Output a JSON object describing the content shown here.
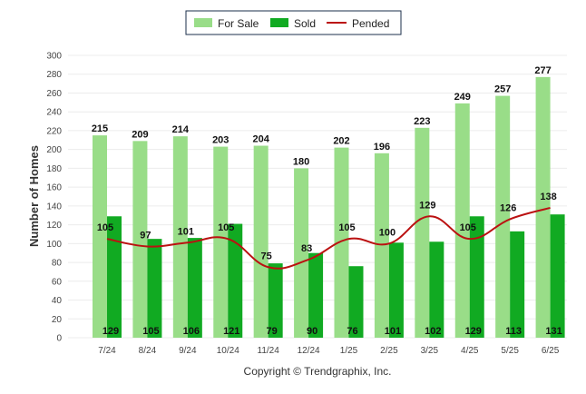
{
  "chart_data": {
    "type": "bar",
    "categories": [
      "7/24",
      "8/24",
      "9/24",
      "10/24",
      "11/24",
      "12/24",
      "1/25",
      "2/25",
      "3/25",
      "4/25",
      "5/25",
      "6/25"
    ],
    "series": [
      {
        "name": "For Sale",
        "type": "bar",
        "color": "#99dd88",
        "values": [
          215,
          209,
          214,
          203,
          204,
          180,
          202,
          196,
          223,
          249,
          257,
          277
        ]
      },
      {
        "name": "Sold",
        "type": "bar",
        "color": "#11aa22",
        "values": [
          129,
          105,
          106,
          121,
          79,
          90,
          76,
          101,
          102,
          129,
          113,
          131
        ]
      },
      {
        "name": "Pended",
        "type": "line",
        "color": "#bb1111",
        "values": [
          105,
          97,
          101,
          105,
          75,
          83,
          105,
          100,
          129,
          105,
          126,
          138
        ]
      }
    ],
    "ylabel": "Number of Homes",
    "ylim": [
      0,
      300
    ],
    "yticks": [
      0,
      20,
      40,
      60,
      80,
      100,
      120,
      140,
      160,
      180,
      200,
      220,
      240,
      260,
      280,
      300
    ],
    "grid": true,
    "legend": "top-center"
  },
  "copyright": "Copyright © Trendgraphix, Inc."
}
